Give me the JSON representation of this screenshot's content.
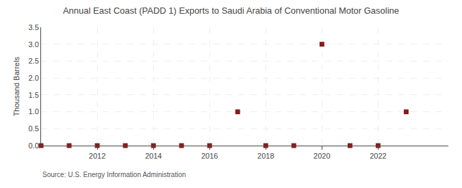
{
  "chart_data": {
    "type": "scatter",
    "title": "Annual East Coast (PADD 1) Exports to Saudi Arabia of Conventional Motor Gasoline",
    "ylabel": "Thousand Barrels",
    "annotations": [
      "Source: U.S. Energy Information Administration"
    ],
    "x": [
      2010,
      2011,
      2012,
      2013,
      2014,
      2015,
      2016,
      2017,
      2018,
      2019,
      2020,
      2021,
      2022,
      2023
    ],
    "values": [
      0,
      0,
      0,
      0,
      0,
      0,
      0,
      1,
      0,
      0,
      3,
      0,
      0,
      1
    ],
    "color": "#8b1a1a",
    "marker": "square",
    "xlim": [
      2010.0,
      2024.5
    ],
    "ylim": [
      0,
      3.5
    ],
    "xticks": [
      2012,
      2014,
      2016,
      2018,
      2020,
      2022
    ],
    "yticks": [
      {
        "value": 0.0,
        "label": "0.0"
      },
      0.5,
      {
        "value": 1.0,
        "label": "1.0"
      },
      1.5,
      {
        "value": 2.0,
        "label": "2.0"
      },
      2.5,
      {
        "value": 3.0,
        "label": "3.0"
      },
      3.5
    ],
    "grid": true
  }
}
